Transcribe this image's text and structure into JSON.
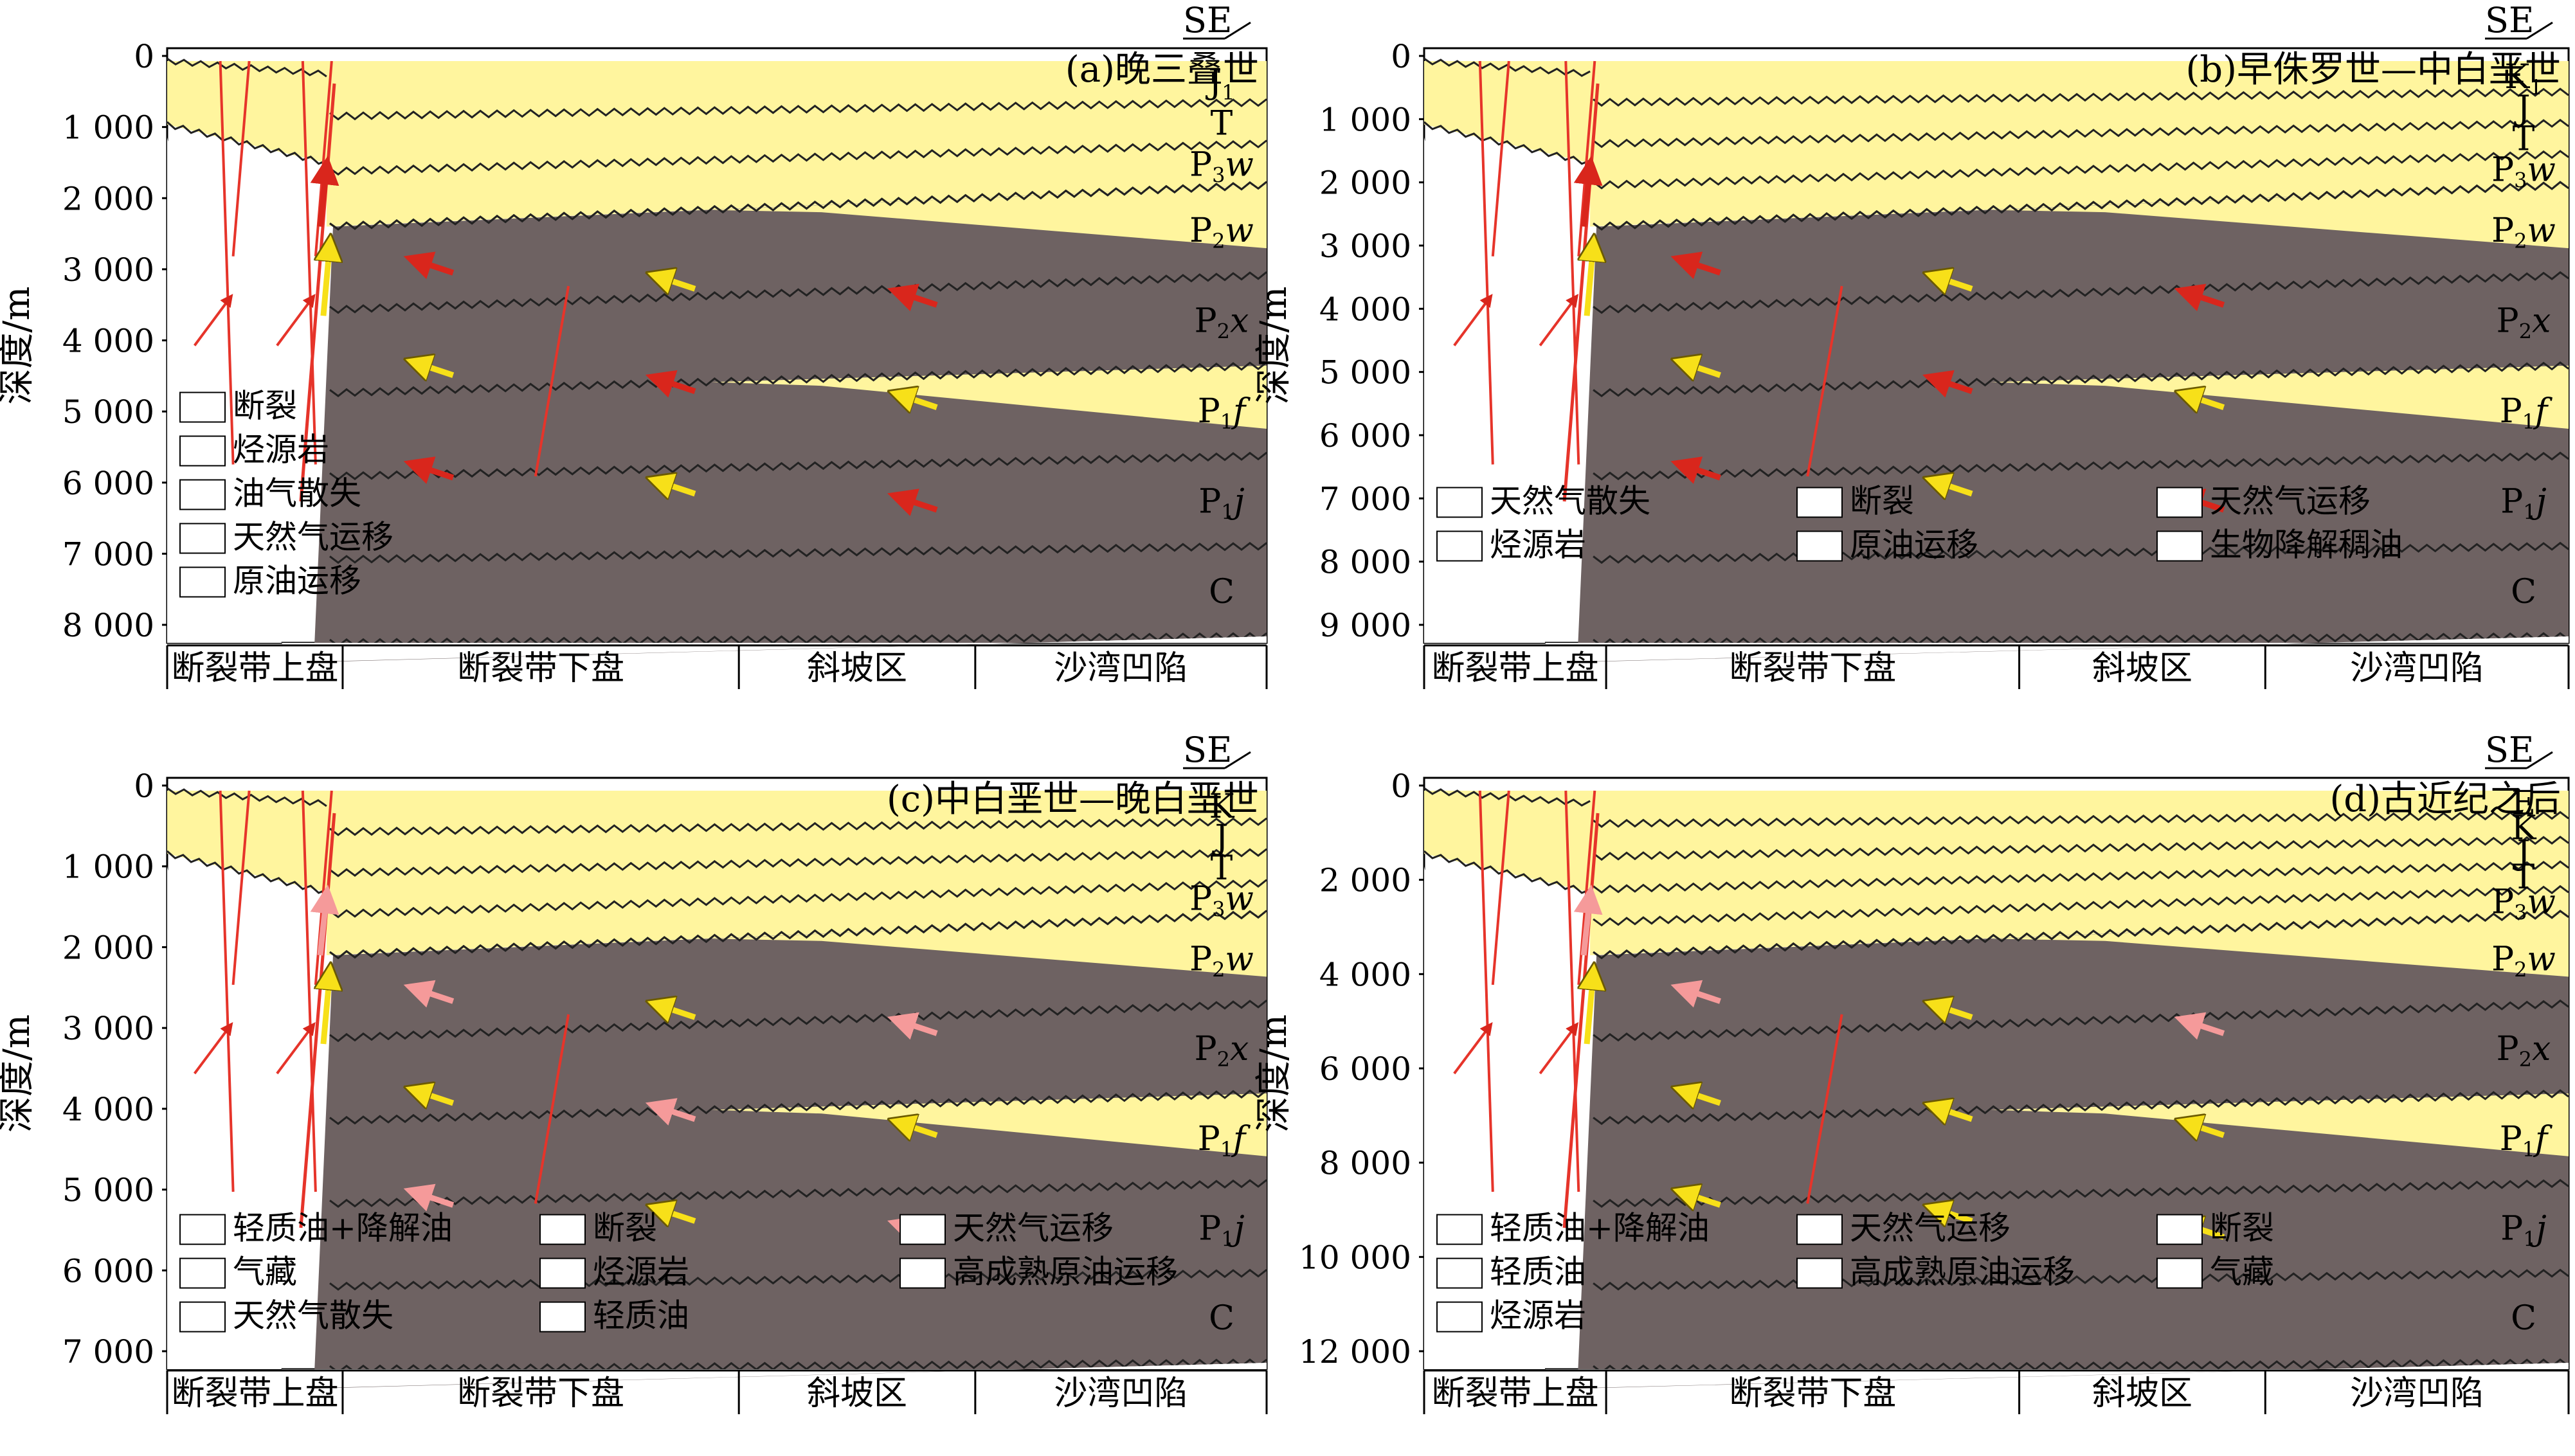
{
  "figure": {
    "axis_label": "深度/m",
    "direction": "SE",
    "zones": [
      "断裂带上盘",
      "断裂带下盘",
      "斜坡区",
      "沙湾凹陷"
    ],
    "panels": [
      {
        "id": "a",
        "title": "(a)晚三叠世",
        "depth_ticks": [
          "0",
          "1 000",
          "2 000",
          "3 000",
          "4 000",
          "5 000",
          "6 000",
          "7 000",
          "8 000"
        ],
        "layers": [
          {
            "label": "J",
            "sub": "1"
          },
          {
            "label": "T",
            "sub": ""
          },
          {
            "label": "P",
            "sub": "3",
            "suffix": "w"
          },
          {
            "label": "P",
            "sub": "2",
            "suffix": "w"
          },
          {
            "label": "P",
            "sub": "2",
            "suffix": "x"
          },
          {
            "label": "P",
            "sub": "1",
            "suffix": "f"
          },
          {
            "label": "P",
            "sub": "1",
            "suffix": "j"
          },
          {
            "label": "C",
            "sub": ""
          }
        ],
        "legend": [
          "断裂",
          "烃源岩",
          "油气散失",
          "天然气运移",
          "原油运移"
        ]
      },
      {
        "id": "b",
        "title": "(b)早侏罗世—中白垩世",
        "depth_ticks": [
          "0",
          "1 000",
          "2 000",
          "3 000",
          "4 000",
          "5 000",
          "6 000",
          "7 000",
          "8 000",
          "9 000"
        ],
        "layers": [
          {
            "label": "K",
            "sub": "1"
          },
          {
            "label": "J",
            "sub": ""
          },
          {
            "label": "T",
            "sub": ""
          },
          {
            "label": "P",
            "sub": "3",
            "suffix": "w"
          },
          {
            "label": "P",
            "sub": "2",
            "suffix": "w"
          },
          {
            "label": "P",
            "sub": "2",
            "suffix": "x"
          },
          {
            "label": "P",
            "sub": "1",
            "suffix": "f"
          },
          {
            "label": "P",
            "sub": "1",
            "suffix": "j"
          },
          {
            "label": "C",
            "sub": ""
          }
        ],
        "legend": [
          "天然气散失",
          "断裂",
          "天然气运移",
          "烃源岩",
          "原油运移",
          "生物降解稠油"
        ]
      },
      {
        "id": "c",
        "title": "(c)中白垩世—晚白垩世",
        "depth_ticks": [
          "0",
          "1 000",
          "2 000",
          "3 000",
          "4 000",
          "5 000",
          "6 000",
          "7 000"
        ],
        "layers": [
          {
            "label": "K",
            "sub": ""
          },
          {
            "label": "J",
            "sub": ""
          },
          {
            "label": "T",
            "sub": ""
          },
          {
            "label": "P",
            "sub": "3",
            "suffix": "w"
          },
          {
            "label": "P",
            "sub": "2",
            "suffix": "w"
          },
          {
            "label": "P",
            "sub": "2",
            "suffix": "x"
          },
          {
            "label": "P",
            "sub": "1",
            "suffix": "f"
          },
          {
            "label": "P",
            "sub": "1",
            "suffix": "j"
          },
          {
            "label": "C",
            "sub": ""
          }
        ],
        "legend": [
          "轻质油+降解油",
          "断裂",
          "天然气运移",
          "气藏",
          "烃源岩",
          "高成熟原油运移",
          "天然气散失",
          "轻质油"
        ]
      },
      {
        "id": "d",
        "title": "(d)古近纪之后",
        "depth_ticks": [
          "0",
          "2 000",
          "4 000",
          "6 000",
          "8 000",
          "10 000",
          "12 000"
        ],
        "layers": [
          {
            "label": "E",
            "sub": ""
          },
          {
            "label": "K",
            "sub": ""
          },
          {
            "label": "J",
            "sub": ""
          },
          {
            "label": "T",
            "sub": ""
          },
          {
            "label": "P",
            "sub": "3",
            "suffix": "w"
          },
          {
            "label": "P",
            "sub": "2",
            "suffix": "w"
          },
          {
            "label": "P",
            "sub": "2",
            "suffix": "x"
          },
          {
            "label": "P",
            "sub": "1",
            "suffix": "f"
          },
          {
            "label": "P",
            "sub": "1",
            "suffix": "j"
          },
          {
            "label": "C",
            "sub": ""
          }
        ],
        "legend": [
          "轻质油+降解油",
          "天然气运移",
          "断裂",
          "轻质油",
          "高成熟原油运移",
          "气藏",
          "烃源岩"
        ]
      }
    ],
    "colors": {
      "strata_yellow": "#fff59e",
      "source_rock": "#6e6262",
      "fault": "#e6342a",
      "oil_arrow": "#d9261c",
      "gas_arrow": "#f7e019",
      "high_mature_oil": "#f59a9a",
      "light_oil": "#e0147a",
      "biodegraded_oil": "#ef7f26",
      "light_plus_degraded": "#f5b4b4",
      "gas_reservoir": "#f7e019"
    }
  }
}
